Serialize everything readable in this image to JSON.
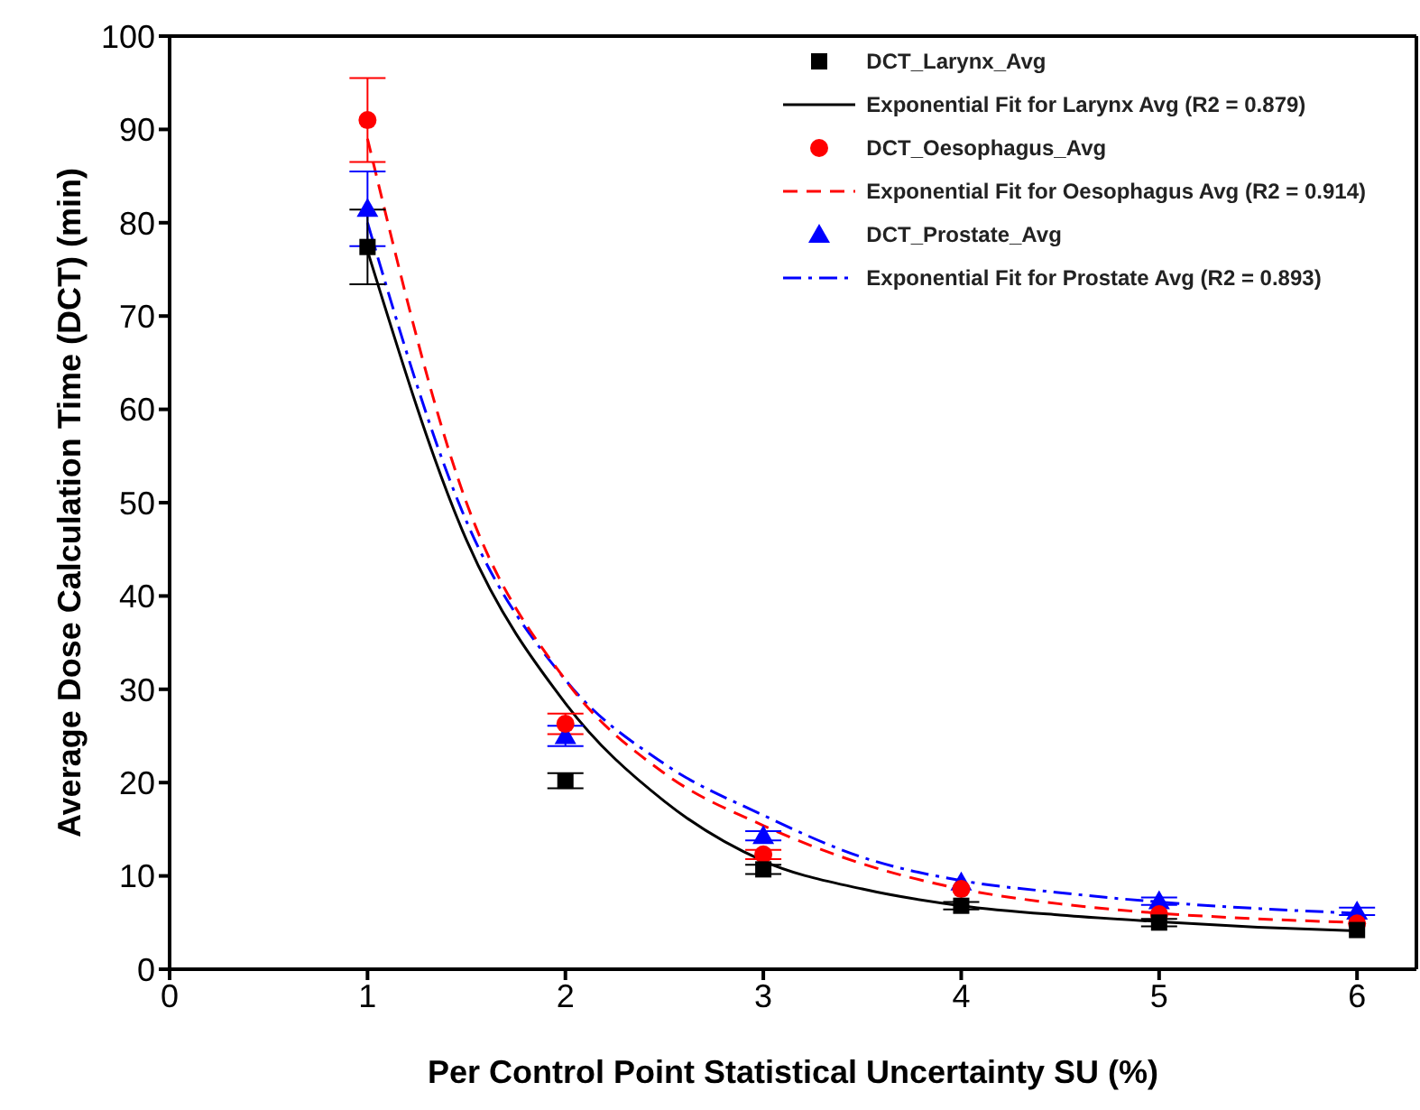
{
  "chart_data": {
    "type": "scatter",
    "xlabel": "Per Control Point Statistical Uncertainty SU (%)",
    "ylabel": "Average Dose Calculation Time (DCT) (min)",
    "x": [
      1,
      2,
      3,
      4,
      5,
      6
    ],
    "series": [
      {
        "name": "DCT_Larynx_Avg",
        "marker": "square",
        "color": "#000000",
        "values": [
          77.4,
          20.2,
          10.7,
          6.8,
          5.0,
          4.2
        ],
        "errors": [
          4,
          0.8,
          0.5,
          0.4,
          0.4,
          null
        ]
      },
      {
        "name": "Exponential Fit for Larynx Avg (R2 = 0.879)",
        "type": "line",
        "line_style": "solid",
        "color": "#000000",
        "x": [
          1,
          1.5,
          2,
          2.5,
          3,
          3.5,
          4,
          4.5,
          5,
          5.5,
          6
        ],
        "values": [
          77,
          46,
          28.5,
          18,
          11.6,
          8.6,
          6.8,
          5.8,
          5.1,
          4.5,
          4.1
        ]
      },
      {
        "name": "DCT_Oesophagus_Avg",
        "marker": "circle",
        "color": "#ff0000",
        "values": [
          91.0,
          26.3,
          12.3,
          8.6,
          5.9,
          4.9
        ],
        "errors": [
          4.5,
          1.1,
          0.5,
          null,
          null,
          null
        ]
      },
      {
        "name": "Exponential Fit for Oesophagus Avg (R2 = 0.914)",
        "type": "line",
        "line_style": "dashed",
        "color": "#ff0000",
        "x": [
          1,
          1.5,
          2,
          2.5,
          3,
          3.5,
          4,
          4.5,
          5,
          5.5,
          6
        ],
        "values": [
          89,
          50,
          31,
          21,
          15.4,
          11.3,
          8.6,
          7,
          6.0,
          5.4,
          5.0
        ]
      },
      {
        "name": "DCT_Prostate_Avg",
        "marker": "triangle",
        "color": "#0000ff",
        "values": [
          81.5,
          25.0,
          14.3,
          9.3,
          7.3,
          6.2
        ],
        "errors": [
          4,
          1.1,
          0.5,
          null,
          0.4,
          0.4
        ]
      },
      {
        "name": "Exponential Fit for Prostate Avg (R2 = 0.893)",
        "type": "line",
        "line_style": "dashdot",
        "color": "#0000ff",
        "x": [
          1,
          1.5,
          2,
          2.5,
          3,
          3.5,
          4,
          4.5,
          5,
          5.5,
          6
        ],
        "values": [
          80,
          48,
          31,
          22,
          16.5,
          12,
          9.5,
          8.2,
          7.2,
          6.5,
          6.0
        ]
      }
    ],
    "xlim": [
      0,
      6.3
    ],
    "xticks": [
      0,
      1,
      2,
      3,
      4,
      5,
      6
    ],
    "ylim": [
      0,
      100
    ],
    "yticks": [
      0,
      10,
      20,
      30,
      40,
      50,
      60,
      70,
      80,
      90,
      100
    ],
    "grid": false,
    "legend": "top right"
  }
}
